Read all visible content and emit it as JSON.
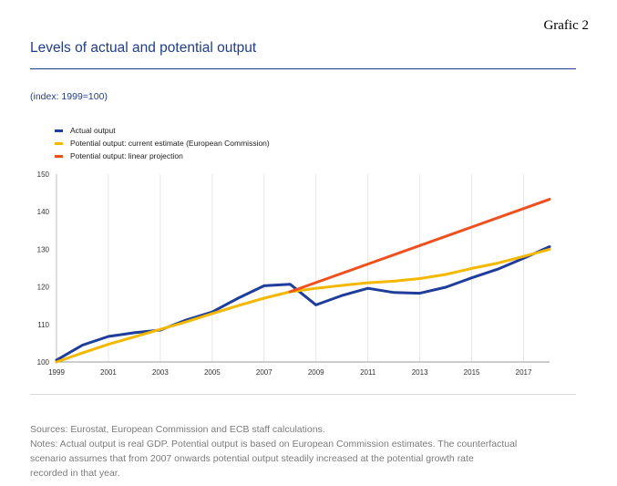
{
  "grafic_label": "Grafic 2",
  "title": "Levels of actual and potential output",
  "subtitle": "(index: 1999=100)",
  "legend": [
    {
      "label": "Actual output",
      "color": "#1f3d9a"
    },
    {
      "label": "Potential output: current estimate (European Commission)",
      "color": "#f5b800"
    },
    {
      "label": "Potential output: linear projection",
      "color": "#f0501e"
    }
  ],
  "notes": {
    "sources": "Sources: Eurostat, European Commission and ECB staff calculations.",
    "line1": "Notes: Actual output is real GDP. Potential output is based on European Commission estimates. The counterfactual",
    "line2": "scenario assumes that from 2007 onwards potential output steadily increased at the potential growth rate",
    "line3": "recorded in that year."
  },
  "chart_data": {
    "type": "line",
    "title": "Levels of actual and potential output",
    "ylabel": "",
    "xlabel": "",
    "xlim": [
      1999,
      2018
    ],
    "ylim": [
      100,
      150
    ],
    "xticks": [
      1999,
      2001,
      2003,
      2005,
      2007,
      2009,
      2011,
      2013,
      2015,
      2017
    ],
    "yticks": [
      100,
      110,
      120,
      130,
      140,
      150
    ],
    "grid": "vertical",
    "legend_position": "top-left",
    "series": [
      {
        "name": "Actual output",
        "color": "#1f3d9a",
        "x": [
          1999,
          2000,
          2001,
          2002,
          2003,
          2004,
          2005,
          2006,
          2007,
          2008,
          2009,
          2010,
          2011,
          2012,
          2013,
          2014,
          2015,
          2016,
          2017,
          2018
        ],
        "values": [
          100.5,
          104.5,
          106.8,
          107.8,
          108.5,
          111.2,
          113.3,
          117.0,
          120.3,
          120.7,
          115.2,
          117.7,
          119.6,
          118.5,
          118.3,
          119.9,
          122.4,
          124.7,
          127.6,
          130.7
        ]
      },
      {
        "name": "Potential output: current estimate (European Commission)",
        "color": "#f5b800",
        "x": [
          1999,
          2000,
          2001,
          2002,
          2003,
          2004,
          2005,
          2006,
          2007,
          2008,
          2009,
          2010,
          2011,
          2012,
          2013,
          2014,
          2015,
          2016,
          2017,
          2018
        ],
        "values": [
          100.0,
          102.4,
          104.7,
          106.7,
          108.7,
          110.7,
          112.9,
          115.0,
          117.0,
          118.7,
          119.6,
          120.4,
          121.1,
          121.5,
          122.2,
          123.3,
          124.9,
          126.3,
          128.1,
          130.0
        ]
      },
      {
        "name": "Potential output: linear projection",
        "color": "#f0501e",
        "x": [
          2008,
          2018
        ],
        "values": [
          118.7,
          143.3
        ]
      }
    ]
  }
}
